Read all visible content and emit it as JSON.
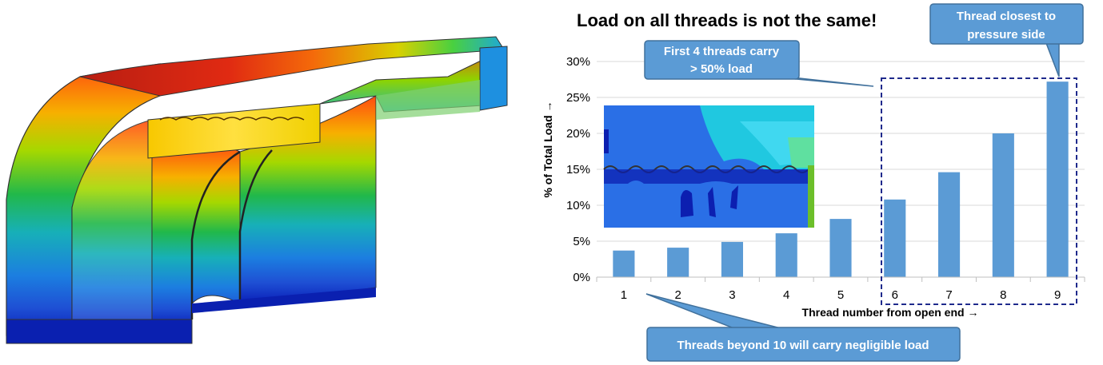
{
  "chart_data": {
    "type": "bar",
    "title": "Load on all threads is not the same!",
    "xlabel": "Thread number from open end →",
    "ylabel": "% of Total Load →",
    "categories": [
      "1",
      "2",
      "3",
      "4",
      "5",
      "6",
      "7",
      "8",
      "9"
    ],
    "values": [
      3.7,
      4.1,
      4.9,
      6.1,
      8.1,
      10.8,
      14.6,
      20.0,
      27.2
    ],
    "ylim": [
      0,
      30
    ],
    "yticks": [
      "0%",
      "5%",
      "10%",
      "15%",
      "20%",
      "25%",
      "30%"
    ],
    "grid": true,
    "bar_color": "#5b9bd5",
    "highlight": {
      "from_category": "6",
      "to_category": "9",
      "style": "dashed-box",
      "color": "#1f2a8c"
    },
    "annotations": [
      {
        "id": "first4",
        "lines": [
          "First 4 threads carry",
          "> 50% load"
        ]
      },
      {
        "id": "closest",
        "lines": [
          "Thread closest to",
          "pressure side"
        ]
      },
      {
        "id": "beyond10",
        "lines": [
          "Threads beyond 10 will carry negligible load"
        ]
      }
    ]
  },
  "colors": {
    "callout_fill": "#5b9bd5",
    "callout_border": "#41719c",
    "highlight_box": "#1f2a8c",
    "grid": "#d9d9d9"
  },
  "images": {
    "left": "fea-stress-contour-cutaway-of-threaded-joint",
    "inset": "fea-stress-contour-of-thread-engagement"
  }
}
